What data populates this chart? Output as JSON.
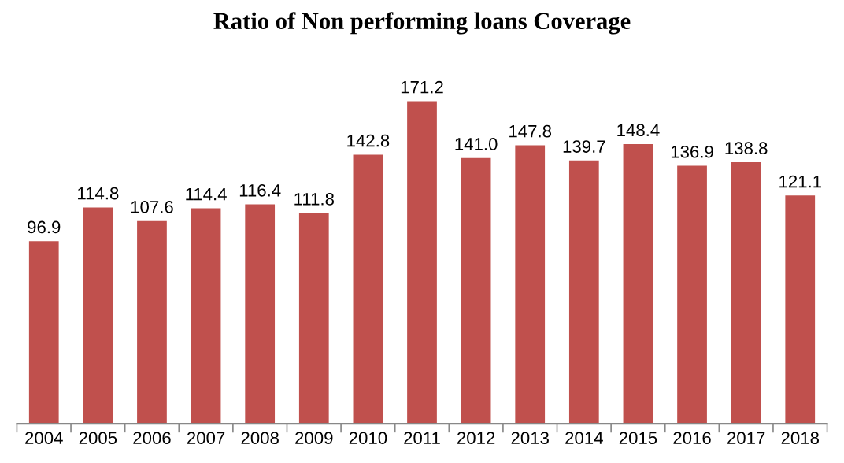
{
  "chart_data": {
    "type": "bar",
    "title": "Ratio of Non performing loans Coverage",
    "categories": [
      "2004",
      "2005",
      "2006",
      "2007",
      "2008",
      "2009",
      "2010",
      "2011",
      "2012",
      "2013",
      "2014",
      "2015",
      "2016",
      "2017",
      "2018"
    ],
    "values": [
      96.9,
      114.8,
      107.6,
      114.4,
      116.4,
      111.8,
      142.8,
      171.2,
      141.0,
      147.8,
      139.7,
      148.4,
      136.9,
      138.8,
      121.1
    ],
    "value_labels": [
      "96.9",
      "114.8",
      "107.6",
      "114.4",
      "116.4",
      "111.8",
      "142.8",
      "171.2",
      "141.0",
      "147.8",
      "139.7",
      "148.4",
      "136.9",
      "138.8",
      "121.1"
    ],
    "color": "#c0504d"
  }
}
